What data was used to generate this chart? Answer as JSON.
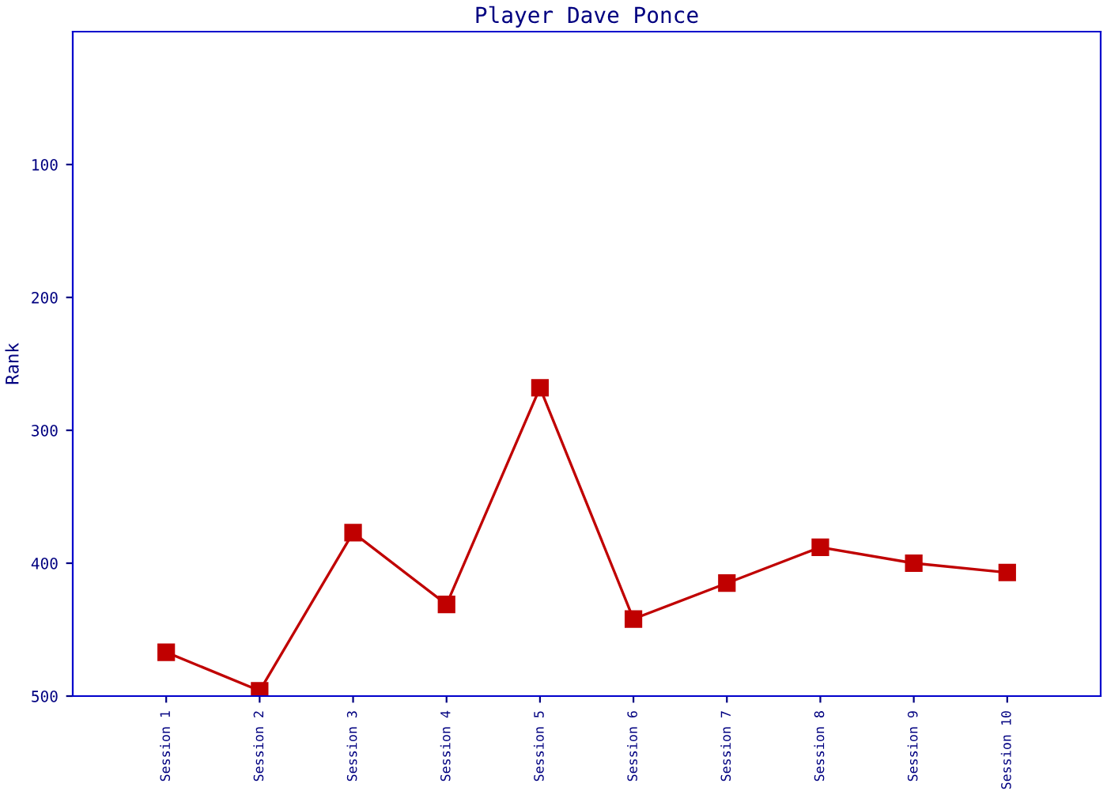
{
  "chart_data": {
    "type": "line",
    "title": "Player Dave Ponce",
    "ylabel": "Rank",
    "categories": [
      "Session 1",
      "Session 2",
      "Session 3",
      "Session 4",
      "Session 5",
      "Session 6",
      "Session 7",
      "Session 8",
      "Session 9",
      "Session 10"
    ],
    "series": [
      {
        "color": "#c00000",
        "values": [
          467,
          496,
          377,
          431,
          268,
          442,
          415,
          388,
          400,
          407
        ]
      }
    ],
    "ylim": [
      500,
      0
    ],
    "yticks": [
      100,
      200,
      300,
      400,
      500
    ],
    "grid": false,
    "marker": "square",
    "line_style": "solid"
  }
}
